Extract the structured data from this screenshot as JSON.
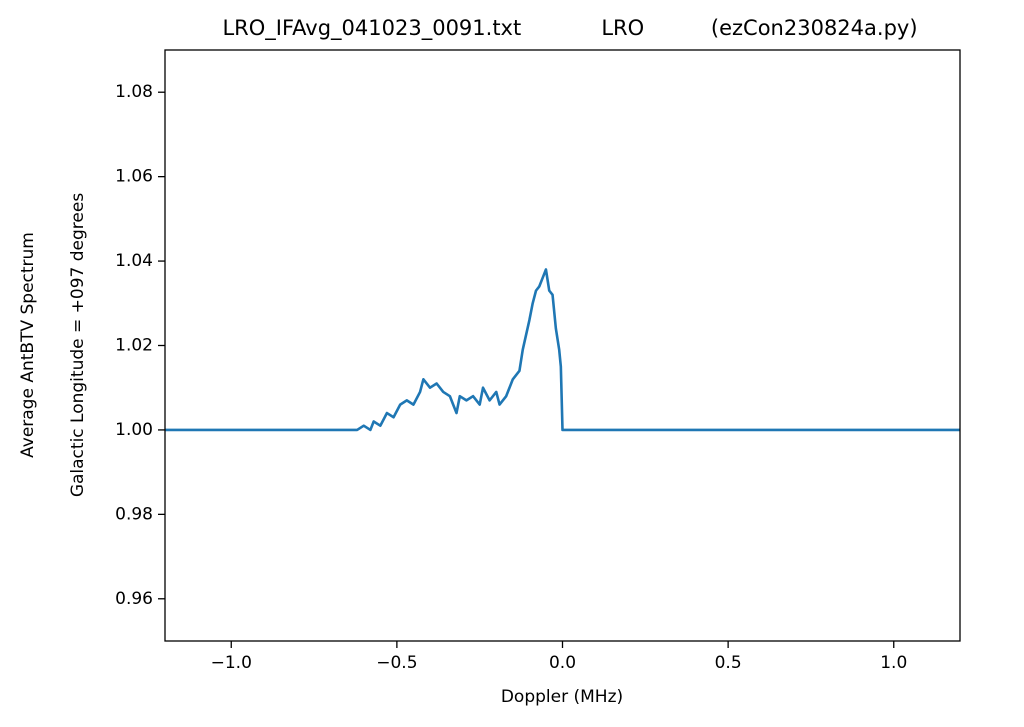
{
  "chart_data": {
    "type": "line",
    "title": "LRO_IFAvg_041023_0091.txt            LRO          (ezCon230824a.py)",
    "xlabel": "Doppler (MHz)",
    "ylabel": [
      "Average AntBTV Spectrum",
      "Galactic Longitude = +097 degrees"
    ],
    "x": [
      -1.2,
      -0.62,
      -0.6,
      -0.58,
      -0.57,
      -0.55,
      -0.53,
      -0.51,
      -0.49,
      -0.47,
      -0.45,
      -0.43,
      -0.42,
      -0.4,
      -0.38,
      -0.36,
      -0.34,
      -0.33,
      -0.32,
      -0.31,
      -0.29,
      -0.27,
      -0.25,
      -0.24,
      -0.22,
      -0.2,
      -0.19,
      -0.17,
      -0.15,
      -0.13,
      -0.12,
      -0.1,
      -0.09,
      -0.08,
      -0.07,
      -0.06,
      -0.05,
      -0.04,
      -0.03,
      -0.02,
      -0.01,
      -0.005,
      0.0,
      1.2
    ],
    "series": [
      {
        "color": "#1f77b4",
        "values": [
          1.0,
          1.0,
          1.001,
          1.0,
          1.002,
          1.001,
          1.004,
          1.003,
          1.006,
          1.007,
          1.006,
          1.009,
          1.012,
          1.01,
          1.011,
          1.009,
          1.008,
          1.006,
          1.004,
          1.008,
          1.007,
          1.008,
          1.006,
          1.01,
          1.007,
          1.009,
          1.006,
          1.008,
          1.012,
          1.014,
          1.019,
          1.026,
          1.03,
          1.033,
          1.034,
          1.036,
          1.038,
          1.033,
          1.032,
          1.024,
          1.019,
          1.015,
          1.0,
          1.0
        ]
      }
    ],
    "xlim": [
      -1.2,
      1.2
    ],
    "ylim": [
      0.95,
      1.09
    ],
    "xticks": [
      {
        "value": -1.0,
        "label": "−1.0"
      },
      {
        "value": -0.5,
        "label": "−0.5"
      },
      {
        "value": 0.0,
        "label": "0.0"
      },
      {
        "value": 0.5,
        "label": "0.5"
      },
      {
        "value": 1.0,
        "label": "1.0"
      }
    ],
    "yticks": [
      0.96,
      0.98,
      {
        "value": 1.0,
        "label": "1.00"
      },
      1.02,
      1.04,
      1.06,
      1.08
    ]
  }
}
